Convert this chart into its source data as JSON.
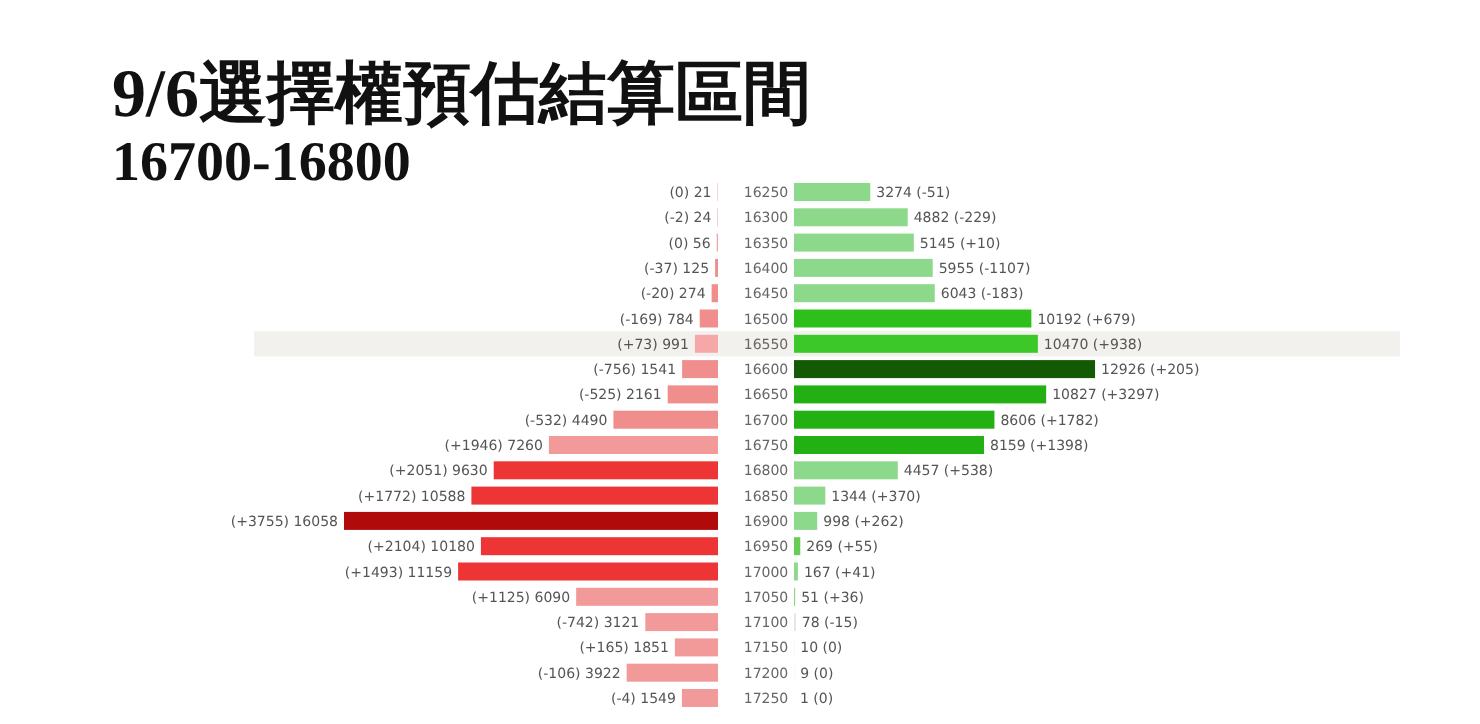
{
  "chart_data": [
    {
      "type": "bar",
      "orientation": "horizontal",
      "title": "9/6選擇權預估結算區間",
      "subtitle": "16700-16800",
      "categories": [
        "16250",
        "16300",
        "16350",
        "16400",
        "16450",
        "16500",
        "16550",
        "16600",
        "16650",
        "16700",
        "16750",
        "16800",
        "16850",
        "16900",
        "16950",
        "17000",
        "17050",
        "17100",
        "17150",
        "17200",
        "17250"
      ],
      "colors": [
        "#f4a5ab",
        "#f4a5ab",
        "#f4a5ab",
        "#f08e8e",
        "#f08e8e",
        "#f08e8e",
        "#f6a8a8",
        "#f08e8e",
        "#f08e8e",
        "#f08e8e",
        "#f29a9a",
        "#ee3535",
        "#ee3535",
        "#b00a0a",
        "#ee3535",
        "#ee3535",
        "#f29a9a",
        "#f29a9a",
        "#f29a9a",
        "#f29a9a",
        "#f29a9a"
      ],
      "values": [
        21,
        24,
        56,
        125,
        274,
        784,
        991,
        1541,
        2161,
        4490,
        7260,
        9630,
        10588,
        16058,
        10180,
        11159,
        6090,
        3121,
        1851,
        3922,
        1549
      ],
      "value_labels": [
        "(0) 21",
        "(-2) 24",
        "(0) 56",
        "(-37) 125",
        "(-20) 274",
        "(-169) 784",
        "(+73) 991",
        "(-756) 1541",
        "(-525) 2161",
        "(-532) 4490",
        "(+1946) 7260",
        "(+2051) 9630",
        "(+1772) 10588",
        "(+3755) 16058",
        "(+2104) 10180",
        "(+1493) 11159",
        "(+1125) 6090",
        "(-742) 3121",
        "(+165) 1851",
        "(-106) 3922",
        "(-4) 1549"
      ],
      "bands": [
        {
          "axis": "y",
          "from": "16550",
          "to": "16550",
          "color": "#f3f1ee"
        }
      ]
    },
    {
      "type": "bar",
      "orientation": "horizontal",
      "tick_labels": false,
      "categories": [
        "16250",
        "16300",
        "16350",
        "16400",
        "16450",
        "16500",
        "16550",
        "16600",
        "16650",
        "16700",
        "16750",
        "16800",
        "16850",
        "16900",
        "16950",
        "17000",
        "17050",
        "17100",
        "17150",
        "17200",
        "17250"
      ],
      "colors": [
        "#8cd98c",
        "#8cd98c",
        "#8cd98c",
        "#8cd98c",
        "#8cd98c",
        "#2fbf1a",
        "#3cc828",
        "#145a05",
        "#22b012",
        "#22b012",
        "#22b012",
        "#8cd98c",
        "#8cd98c",
        "#8cd98c",
        "#66cc55",
        "#8cd98c",
        "#8cd98c",
        "#dfe8df",
        "#dfe8df",
        "#dfe8df",
        "#dfe8df"
      ],
      "values": [
        3274,
        4882,
        5145,
        5955,
        6043,
        10192,
        10470,
        12926,
        10827,
        8606,
        8159,
        4457,
        1344,
        998,
        269,
        167,
        51,
        78,
        10,
        9,
        1
      ],
      "value_labels": [
        "3274 (-51)",
        "4882 (-229)",
        "5145 (+10)",
        "5955 (-1107)",
        "6043 (-183)",
        "10192 (+679)",
        "10470 (+938)",
        "12926 (+205)",
        "10827 (+3297)",
        "8606 (+1782)",
        "8159 (+1398)",
        "4457 (+538)",
        "1344 (+370)",
        "998 (+262)",
        "269 (+55)",
        "167 (+41)",
        "51 (+36)",
        "78 (-15)",
        "10 (0)",
        "9 (0)",
        "1 (0)"
      ],
      "bands": [
        {
          "axis": "y",
          "from": "16550",
          "to": "16550",
          "color": "#f3f1ee"
        }
      ]
    }
  ]
}
